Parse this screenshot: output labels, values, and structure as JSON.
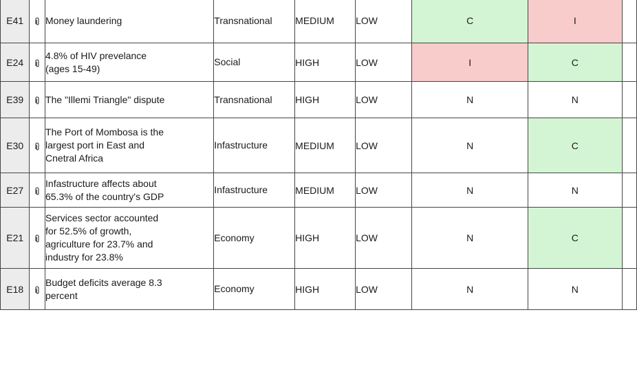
{
  "table": {
    "rows": [
      {
        "id": "E41",
        "description": "Money laundering",
        "category": "Transnational",
        "impact": "MEDIUM",
        "probability": "LOW",
        "col_a": "C",
        "col_b": "I",
        "colors": {
          "col_a": "#d4f5d4",
          "col_b": "#f9cccc"
        }
      },
      {
        "id": "E24",
        "description": "4.8% of HIV prevelance\n(ages 15-49)",
        "category": "Social",
        "impact": "HIGH",
        "probability": "LOW",
        "col_a": "I",
        "col_b": "C",
        "colors": {
          "col_a": "#f9cccc",
          "col_b": "#d4f5d4"
        }
      },
      {
        "id": "E39",
        "description": "The \"Illemi Triangle\" dispute",
        "category": "Transnational",
        "impact": "HIGH",
        "probability": "LOW",
        "col_a": "N",
        "col_b": "N",
        "colors": {
          "col_a": "#ffffff",
          "col_b": "#ffffff"
        }
      },
      {
        "id": "E30",
        "description": "The Port of Mombosa is the\nlargest port in East and\nCnetral Africa",
        "category": "Infastructure",
        "impact": "MEDIUM",
        "probability": "LOW",
        "col_a": "N",
        "col_b": "C",
        "colors": {
          "col_a": "#ffffff",
          "col_b": "#d4f5d4"
        }
      },
      {
        "id": "E27",
        "description": "Infastructure affects about\n65.3% of the country's GDP",
        "category": "Infastructure",
        "impact": "MEDIUM",
        "probability": "LOW",
        "col_a": "N",
        "col_b": "N",
        "colors": {
          "col_a": "#ffffff",
          "col_b": "#ffffff"
        }
      },
      {
        "id": "E21",
        "description": "Services sector accounted\nfor 52.5% of growth,\nagriculture for 23.7% and\nindustry for 23.8%",
        "category": "Economy",
        "impact": "HIGH",
        "probability": "LOW",
        "col_a": "N",
        "col_b": "C",
        "colors": {
          "col_a": "#ffffff",
          "col_b": "#d4f5d4"
        }
      },
      {
        "id": "E18",
        "description": "Budget deficits average 8.3\npercent",
        "category": "Economy",
        "impact": "HIGH",
        "probability": "LOW",
        "col_a": "N",
        "col_b": "N",
        "colors": {
          "col_a": "#ffffff",
          "col_b": "#ffffff"
        }
      }
    ]
  },
  "icons": {
    "attachment": "paperclip-icon"
  },
  "colors": {
    "consistent": "#d4f5d4",
    "inconsistent": "#f9cccc",
    "neutral": "#ffffff",
    "id_cell": "#ececec",
    "border": "#444444"
  }
}
